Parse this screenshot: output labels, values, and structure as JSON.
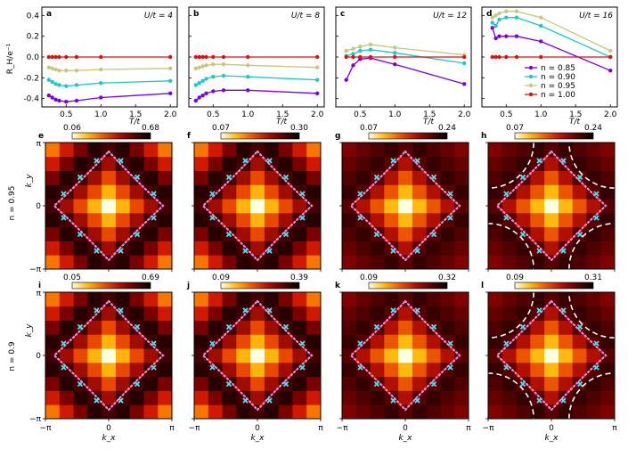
{
  "figure": {
    "y_label": "R_H/e⁻¹",
    "x_label": "T/t",
    "row_label_1": "n = 0.95",
    "row_label_2": "n = 0.9",
    "ky_label": "k_y",
    "kx_label": "k_x",
    "pi_label": "π",
    "neg_pi_label": "−π",
    "zero_label": "0"
  },
  "chart_data": [
    {
      "type": "line",
      "panel": "a",
      "annotation": "U/t = 4",
      "xlabel": "T/t",
      "ylabel": "R_H/e⁻¹",
      "xlim": [
        0.15,
        2.1
      ],
      "ylim": [
        -0.48,
        0.48
      ],
      "xticks": [
        0.5,
        1.0,
        1.5,
        2.0
      ],
      "yticks": [
        -0.4,
        -0.2,
        0.0,
        0.2,
        0.4
      ],
      "series": [
        {
          "name": "n = 0.85",
          "color": "#7a00e0",
          "x": [
            0.25,
            0.3,
            0.35,
            0.4,
            0.5,
            0.65,
            1.0,
            2.0
          ],
          "y": [
            -0.37,
            -0.39,
            -0.41,
            -0.42,
            -0.43,
            -0.42,
            -0.39,
            -0.35
          ]
        },
        {
          "name": "n = 0.90",
          "color": "#1ec8c8",
          "x": [
            0.25,
            0.3,
            0.35,
            0.4,
            0.5,
            0.65,
            1.0,
            2.0
          ],
          "y": [
            -0.22,
            -0.24,
            -0.26,
            -0.27,
            -0.28,
            -0.27,
            -0.25,
            -0.23
          ]
        },
        {
          "name": "n = 0.95",
          "color": "#c5c87c",
          "x": [
            0.25,
            0.3,
            0.35,
            0.4,
            0.5,
            0.65,
            1.0,
            2.0
          ],
          "y": [
            -0.1,
            -0.11,
            -0.12,
            -0.13,
            -0.13,
            -0.13,
            -0.12,
            -0.11
          ]
        },
        {
          "name": "n = 1.00",
          "color": "#e01010",
          "x": [
            0.25,
            0.3,
            0.35,
            0.4,
            0.5,
            0.65,
            1.0,
            2.0
          ],
          "y": [
            0,
            0,
            0,
            0,
            0,
            0,
            0,
            0
          ]
        }
      ]
    },
    {
      "type": "line",
      "panel": "b",
      "annotation": "U/t = 8",
      "xlabel": "T/t",
      "xlim": [
        0.15,
        2.1
      ],
      "ylim": [
        -0.48,
        0.48
      ],
      "xticks": [
        0.5,
        1.0,
        1.5,
        2.0
      ],
      "series": [
        {
          "name": "n = 0.85",
          "color": "#7a00e0",
          "x": [
            0.25,
            0.3,
            0.35,
            0.4,
            0.5,
            0.65,
            1.0,
            2.0
          ],
          "y": [
            -0.42,
            -0.39,
            -0.37,
            -0.35,
            -0.33,
            -0.32,
            -0.32,
            -0.35
          ]
        },
        {
          "name": "n = 0.90",
          "color": "#1ec8c8",
          "x": [
            0.25,
            0.3,
            0.35,
            0.4,
            0.5,
            0.65,
            1.0,
            2.0
          ],
          "y": [
            -0.27,
            -0.25,
            -0.23,
            -0.21,
            -0.19,
            -0.18,
            -0.19,
            -0.22
          ]
        },
        {
          "name": "n = 0.95",
          "color": "#c5c87c",
          "x": [
            0.25,
            0.3,
            0.35,
            0.4,
            0.5,
            0.65,
            1.0,
            2.0
          ],
          "y": [
            -0.11,
            -0.1,
            -0.09,
            -0.08,
            -0.07,
            -0.07,
            -0.08,
            -0.1
          ]
        },
        {
          "name": "n = 1.00",
          "color": "#e01010",
          "x": [
            0.25,
            0.3,
            0.35,
            0.4,
            0.5,
            0.65,
            1.0,
            2.0
          ],
          "y": [
            0,
            0,
            0,
            0,
            0,
            0,
            0,
            0
          ]
        }
      ]
    },
    {
      "type": "line",
      "panel": "c",
      "annotation": "U/t = 12",
      "xlabel": "T/t",
      "xlim": [
        0.15,
        2.1
      ],
      "ylim": [
        -0.48,
        0.48
      ],
      "xticks": [
        0.5,
        1.0,
        1.5,
        2.0
      ],
      "series": [
        {
          "name": "n = 0.85",
          "color": "#7a00e0",
          "x": [
            0.3,
            0.4,
            0.5,
            0.65,
            1.0,
            2.0
          ],
          "y": [
            -0.22,
            -0.08,
            -0.02,
            -0.01,
            -0.07,
            -0.26
          ]
        },
        {
          "name": "n = 0.90",
          "color": "#1ec8c8",
          "x": [
            0.3,
            0.4,
            0.5,
            0.65,
            1.0,
            2.0
          ],
          "y": [
            0.01,
            0.03,
            0.06,
            0.07,
            0.04,
            -0.06
          ]
        },
        {
          "name": "n = 0.95",
          "color": "#c5c87c",
          "x": [
            0.3,
            0.4,
            0.5,
            0.65,
            1.0,
            2.0
          ],
          "y": [
            0.06,
            0.08,
            0.1,
            0.12,
            0.09,
            0.02
          ]
        },
        {
          "name": "n = 1.00",
          "color": "#e01010",
          "x": [
            0.3,
            0.4,
            0.5,
            0.65,
            1.0,
            2.0
          ],
          "y": [
            0,
            0,
            0,
            0,
            0,
            0
          ]
        }
      ]
    },
    {
      "type": "line",
      "panel": "d",
      "annotation": "U/t = 16",
      "xlabel": "T/t",
      "xlim": [
        0.15,
        2.1
      ],
      "ylim": [
        -0.48,
        0.48
      ],
      "xticks": [
        0.5,
        1.0,
        1.5,
        2.0
      ],
      "legend": "lower-right",
      "series": [
        {
          "name": "n = 0.85",
          "color": "#7a00e0",
          "x": [
            0.3,
            0.35,
            0.4,
            0.5,
            0.65,
            1.0,
            2.0
          ],
          "y": [
            0.28,
            0.18,
            0.2,
            0.2,
            0.2,
            0.15,
            -0.13
          ]
        },
        {
          "name": "n = 0.90",
          "color": "#1ec8c8",
          "x": [
            0.3,
            0.35,
            0.4,
            0.5,
            0.65,
            1.0,
            2.0
          ],
          "y": [
            0.33,
            0.3,
            0.36,
            0.38,
            0.38,
            0.3,
            0.0
          ]
        },
        {
          "name": "n = 0.95",
          "color": "#c5c87c",
          "x": [
            0.3,
            0.35,
            0.4,
            0.5,
            0.65,
            1.0,
            2.0
          ],
          "y": [
            0.38,
            0.4,
            0.42,
            0.44,
            0.44,
            0.38,
            0.06
          ]
        },
        {
          "name": "n = 1.00",
          "color": "#e01010",
          "x": [
            0.3,
            0.35,
            0.4,
            0.5,
            0.65,
            1.0,
            2.0
          ],
          "y": [
            0,
            0,
            0,
            0,
            0,
            0,
            0
          ]
        }
      ]
    },
    {
      "type": "heatmap",
      "panel": "e",
      "row": "n = 0.95",
      "colorbar_min": "0.06",
      "colorbar_max": "0.68",
      "corner_bright": true,
      "dashed_arcs": false,
      "xlim": [
        "−π",
        "π"
      ],
      "ylim": [
        "−π",
        "π"
      ]
    },
    {
      "type": "heatmap",
      "panel": "f",
      "row": "n = 0.95",
      "colorbar_min": "0.07",
      "colorbar_max": "0.30",
      "corner_bright": true,
      "dashed_arcs": false,
      "xlim": [
        "−π",
        "π"
      ],
      "ylim": [
        "−π",
        "π"
      ]
    },
    {
      "type": "heatmap",
      "panel": "g",
      "row": "n = 0.95",
      "colorbar_min": "0.07",
      "colorbar_max": "0.24",
      "corner_bright": false,
      "dashed_arcs": false,
      "xlim": [
        "−π",
        "π"
      ],
      "ylim": [
        "−π",
        "π"
      ]
    },
    {
      "type": "heatmap",
      "panel": "h",
      "row": "n = 0.95",
      "colorbar_min": "0.07",
      "colorbar_max": "0.24",
      "corner_bright": false,
      "dashed_arcs": true,
      "xlim": [
        "−π",
        "π"
      ],
      "ylim": [
        "−π",
        "π"
      ]
    },
    {
      "type": "heatmap",
      "panel": "i",
      "row": "n = 0.9",
      "colorbar_min": "0.05",
      "colorbar_max": "0.69",
      "corner_bright": true,
      "dashed_arcs": false,
      "xlim": [
        "−π",
        "π"
      ],
      "ylim": [
        "−π",
        "π"
      ]
    },
    {
      "type": "heatmap",
      "panel": "j",
      "row": "n = 0.9",
      "colorbar_min": "0.09",
      "colorbar_max": "0.39",
      "corner_bright": true,
      "dashed_arcs": false,
      "xlim": [
        "−π",
        "π"
      ],
      "ylim": [
        "−π",
        "π"
      ]
    },
    {
      "type": "heatmap",
      "panel": "k",
      "row": "n = 0.9",
      "colorbar_min": "0.09",
      "colorbar_max": "0.32",
      "corner_bright": false,
      "dashed_arcs": false,
      "xlim": [
        "−π",
        "π"
      ],
      "ylim": [
        "−π",
        "π"
      ]
    },
    {
      "type": "heatmap",
      "panel": "l",
      "row": "n = 0.9",
      "colorbar_min": "0.09",
      "colorbar_max": "0.31",
      "corner_bright": false,
      "dashed_arcs": true,
      "xlim": [
        "−π",
        "π"
      ],
      "ylim": [
        "−π",
        "π"
      ]
    }
  ]
}
